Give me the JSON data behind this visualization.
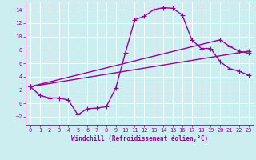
{
  "xlabel": "Windchill (Refroidissement éolien,°C)",
  "xlim": [
    -0.5,
    23.5
  ],
  "ylim": [
    -3.2,
    15.2
  ],
  "xticks": [
    0,
    1,
    2,
    3,
    4,
    5,
    6,
    7,
    8,
    9,
    10,
    11,
    12,
    13,
    14,
    15,
    16,
    17,
    18,
    19,
    20,
    21,
    22,
    23
  ],
  "yticks": [
    -2,
    0,
    2,
    4,
    6,
    8,
    10,
    12,
    14
  ],
  "background_color": "#cceef0",
  "grid_color": "#ffffff",
  "line_color": "#990099",
  "line1_x": [
    0,
    1,
    2,
    3,
    4,
    5,
    6,
    7,
    8,
    9,
    10,
    11,
    12,
    13,
    14,
    15,
    16,
    17,
    18,
    19,
    20,
    21,
    22,
    23
  ],
  "line1_y": [
    2.5,
    1.2,
    0.8,
    0.8,
    0.5,
    -1.7,
    -0.8,
    -0.7,
    -0.5,
    2.3,
    7.5,
    12.5,
    13.0,
    14.0,
    14.3,
    14.2,
    13.2,
    9.5,
    8.2,
    8.2,
    6.2,
    5.2,
    4.8,
    4.2
  ],
  "line2_x": [
    0,
    23
  ],
  "line2_y": [
    2.5,
    7.8
  ],
  "line3_x": [
    0,
    20,
    21,
    22,
    23
  ],
  "line3_y": [
    2.5,
    9.5,
    8.5,
    7.8,
    7.5
  ],
  "marker": "+",
  "markersize": 4,
  "linewidth": 1.0,
  "tick_fontsize": 5,
  "xlabel_fontsize": 5.5
}
